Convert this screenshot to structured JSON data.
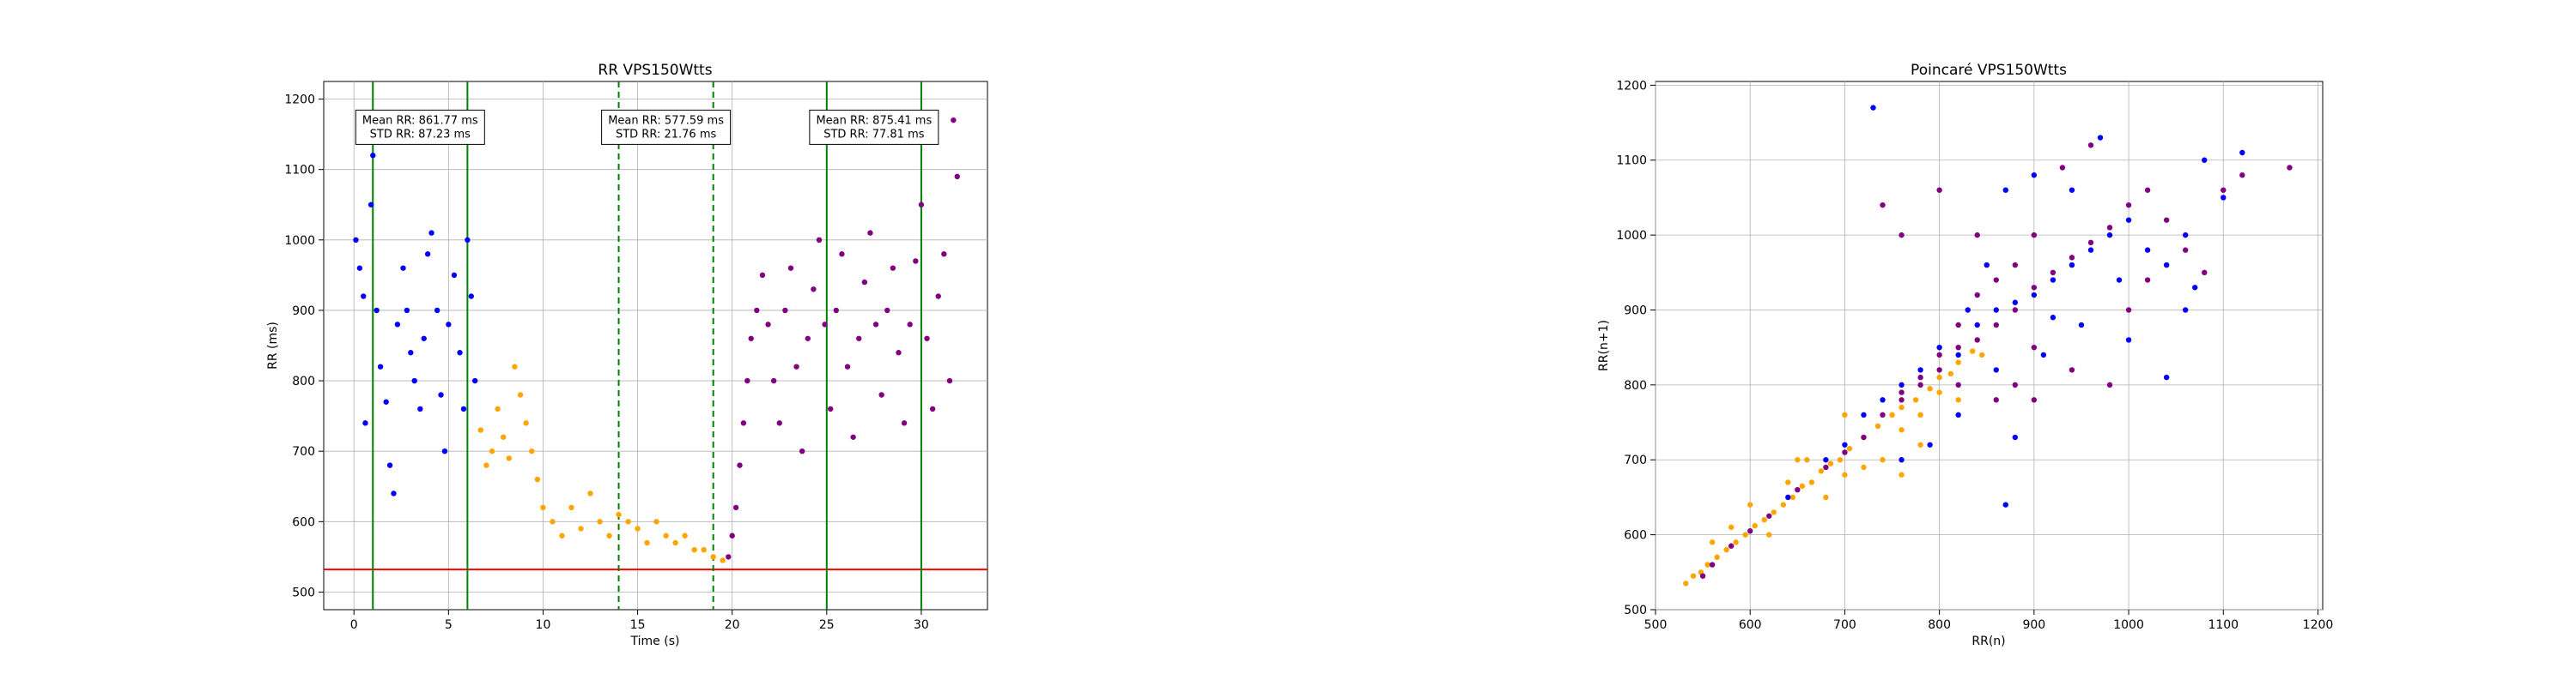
{
  "chart_data": [
    {
      "type": "scatter",
      "title": "RR VPS150Wtts",
      "xlabel": "Time (s)",
      "ylabel": "RR (ms)",
      "xlim": [
        -1.6,
        33.5
      ],
      "ylim": [
        475,
        1225
      ],
      "xticks": [
        0,
        5,
        10,
        15,
        20,
        25,
        30
      ],
      "yticks": [
        500,
        600,
        700,
        800,
        900,
        1000,
        1100,
        1200
      ],
      "grid": true,
      "series": [
        {
          "color": "#0000ff",
          "segment": [
            0,
            6.5
          ],
          "points": [
            [
              0.1,
              1000
            ],
            [
              0.3,
              960
            ],
            [
              0.5,
              920
            ],
            [
              0.6,
              740
            ],
            [
              0.9,
              1050
            ],
            [
              1.0,
              1120
            ],
            [
              1.2,
              900
            ],
            [
              1.4,
              820
            ],
            [
              1.7,
              770
            ],
            [
              1.9,
              680
            ],
            [
              2.1,
              640
            ],
            [
              2.3,
              880
            ],
            [
              2.6,
              960
            ],
            [
              2.8,
              900
            ],
            [
              3.0,
              840
            ],
            [
              3.2,
              800
            ],
            [
              3.5,
              760
            ],
            [
              3.7,
              860
            ],
            [
              3.9,
              980
            ],
            [
              4.1,
              1010
            ],
            [
              4.4,
              900
            ],
            [
              4.6,
              780
            ],
            [
              4.8,
              700
            ],
            [
              5.0,
              880
            ],
            [
              5.3,
              950
            ],
            [
              5.6,
              840
            ],
            [
              5.8,
              760
            ],
            [
              6.0,
              1000
            ],
            [
              6.2,
              920
            ],
            [
              6.4,
              800
            ]
          ]
        },
        {
          "color": "#ffa500",
          "segment": [
            6.5,
            19.8
          ],
          "points": [
            [
              6.7,
              730
            ],
            [
              7.0,
              680
            ],
            [
              7.3,
              700
            ],
            [
              7.6,
              760
            ],
            [
              7.9,
              720
            ],
            [
              8.2,
              690
            ],
            [
              8.5,
              820
            ],
            [
              8.8,
              780
            ],
            [
              9.1,
              740
            ],
            [
              9.4,
              700
            ],
            [
              9.7,
              660
            ],
            [
              10.0,
              620
            ],
            [
              10.5,
              600
            ],
            [
              11.0,
              580
            ],
            [
              11.5,
              620
            ],
            [
              12.0,
              590
            ],
            [
              12.5,
              640
            ],
            [
              13.0,
              600
            ],
            [
              13.5,
              580
            ],
            [
              14.0,
              610
            ],
            [
              14.5,
              600
            ],
            [
              15.0,
              590
            ],
            [
              15.5,
              570
            ],
            [
              16.0,
              600
            ],
            [
              16.5,
              580
            ],
            [
              17.0,
              570
            ],
            [
              17.5,
              580
            ],
            [
              18.0,
              560
            ],
            [
              18.5,
              560
            ],
            [
              19.0,
              550
            ],
            [
              19.5,
              545
            ]
          ]
        },
        {
          "color": "#800080",
          "segment": [
            19.8,
            32.0
          ],
          "points": [
            [
              19.8,
              550
            ],
            [
              20.0,
              580
            ],
            [
              20.2,
              620
            ],
            [
              20.4,
              680
            ],
            [
              20.6,
              740
            ],
            [
              20.8,
              800
            ],
            [
              21.0,
              860
            ],
            [
              21.3,
              900
            ],
            [
              21.6,
              950
            ],
            [
              21.9,
              880
            ],
            [
              22.2,
              800
            ],
            [
              22.5,
              740
            ],
            [
              22.8,
              900
            ],
            [
              23.1,
              960
            ],
            [
              23.4,
              820
            ],
            [
              23.7,
              700
            ],
            [
              24.0,
              860
            ],
            [
              24.3,
              930
            ],
            [
              24.6,
              1000
            ],
            [
              24.9,
              880
            ],
            [
              25.2,
              760
            ],
            [
              25.5,
              900
            ],
            [
              25.8,
              980
            ],
            [
              26.1,
              820
            ],
            [
              26.4,
              720
            ],
            [
              26.7,
              860
            ],
            [
              27.0,
              940
            ],
            [
              27.3,
              1010
            ],
            [
              27.6,
              880
            ],
            [
              27.9,
              780
            ],
            [
              28.2,
              900
            ],
            [
              28.5,
              960
            ],
            [
              28.8,
              840
            ],
            [
              29.1,
              740
            ],
            [
              29.4,
              880
            ],
            [
              29.7,
              970
            ],
            [
              30.0,
              1050
            ],
            [
              30.3,
              860
            ],
            [
              30.6,
              760
            ],
            [
              30.9,
              920
            ],
            [
              31.2,
              980
            ],
            [
              31.5,
              800
            ],
            [
              31.7,
              1170
            ],
            [
              31.9,
              1090
            ]
          ]
        }
      ],
      "hline": {
        "y": 532,
        "color": "#ff0000"
      },
      "vlines": [
        {
          "x": 1.0,
          "style": "solid",
          "color": "#008000"
        },
        {
          "x": 6.0,
          "style": "solid",
          "color": "#008000"
        },
        {
          "x": 14.0,
          "style": "dashed",
          "color": "#008000"
        },
        {
          "x": 19.0,
          "style": "dashed",
          "color": "#008000"
        },
        {
          "x": 25.0,
          "style": "solid",
          "color": "#008000"
        },
        {
          "x": 30.0,
          "style": "solid",
          "color": "#008000"
        }
      ],
      "annotations": [
        {
          "cx": 3.5,
          "cy": 1160,
          "lines": [
            "Mean RR: 861.77 ms",
            "STD RR: 87.23 ms"
          ]
        },
        {
          "cx": 16.5,
          "cy": 1160,
          "lines": [
            "Mean RR: 577.59 ms",
            "STD RR: 21.76 ms"
          ]
        },
        {
          "cx": 27.5,
          "cy": 1160,
          "lines": [
            "Mean RR: 875.41 ms",
            "STD RR: 77.81 ms"
          ]
        }
      ]
    },
    {
      "type": "scatter",
      "title": "Poincaré VPS150Wtts",
      "xlabel": "RR(n)",
      "ylabel": "RR(n+1)",
      "xlim": [
        500,
        1205
      ],
      "ylim": [
        500,
        1205
      ],
      "xticks": [
        500,
        600,
        700,
        800,
        900,
        1000,
        1100,
        1200
      ],
      "yticks": [
        500,
        600,
        700,
        800,
        900,
        1000,
        1100,
        1200
      ],
      "grid": true,
      "series": [
        {
          "color": "#ffa500",
          "points": [
            [
              532,
              535
            ],
            [
              540,
              545
            ],
            [
              548,
              550
            ],
            [
              555,
              560
            ],
            [
              565,
              570
            ],
            [
              575,
              580
            ],
            [
              585,
              590
            ],
            [
              595,
              600
            ],
            [
              605,
              612
            ],
            [
              615,
              620
            ],
            [
              625,
              630
            ],
            [
              635,
              640
            ],
            [
              645,
              650
            ],
            [
              655,
              665
            ],
            [
              665,
              670
            ],
            [
              675,
              685
            ],
            [
              685,
              695
            ],
            [
              695,
              700
            ],
            [
              705,
              715
            ],
            [
              720,
              730
            ],
            [
              735,
              745
            ],
            [
              750,
              760
            ],
            [
              760,
              770
            ],
            [
              775,
              780
            ],
            [
              790,
              795
            ],
            [
              800,
              810
            ],
            [
              812,
              815
            ],
            [
              820,
              830
            ],
            [
              835,
              845
            ],
            [
              845,
              840
            ],
            [
              660,
              700
            ],
            [
              680,
              650
            ],
            [
              700,
              680
            ],
            [
              720,
              690
            ],
            [
              740,
              700
            ],
            [
              760,
              740
            ],
            [
              780,
              760
            ],
            [
              800,
              790
            ],
            [
              600,
              640
            ],
            [
              620,
              600
            ],
            [
              640,
              670
            ],
            [
              580,
              610
            ],
            [
              560,
              590
            ],
            [
              700,
              760
            ],
            [
              650,
              700
            ],
            [
              760,
              680
            ],
            [
              780,
              720
            ],
            [
              820,
              780
            ]
          ]
        },
        {
          "color": "#0000ff",
          "points": [
            [
              640,
              650
            ],
            [
              680,
              700
            ],
            [
              700,
              720
            ],
            [
              720,
              760
            ],
            [
              740,
              780
            ],
            [
              760,
              800
            ],
            [
              780,
              820
            ],
            [
              800,
              850
            ],
            [
              820,
              840
            ],
            [
              840,
              880
            ],
            [
              860,
              900
            ],
            [
              880,
              910
            ],
            [
              900,
              920
            ],
            [
              920,
              940
            ],
            [
              940,
              960
            ],
            [
              960,
              980
            ],
            [
              980,
              1000
            ],
            [
              1000,
              1020
            ],
            [
              1020,
              980
            ],
            [
              1040,
              960
            ],
            [
              1060,
              1000
            ],
            [
              1080,
              1100
            ],
            [
              1100,
              1050
            ],
            [
              1120,
              1110
            ],
            [
              900,
              1080
            ],
            [
              870,
              1060
            ],
            [
              850,
              960
            ],
            [
              830,
              900
            ],
            [
              870,
              640
            ],
            [
              880,
              730
            ],
            [
              1040,
              810
            ],
            [
              1000,
              860
            ],
            [
              950,
              880
            ],
            [
              910,
              840
            ],
            [
              860,
              820
            ],
            [
              820,
              760
            ],
            [
              790,
              720
            ],
            [
              760,
              700
            ],
            [
              730,
              1170
            ],
            [
              1070,
              930
            ],
            [
              1060,
              900
            ],
            [
              990,
              940
            ],
            [
              970,
              1130
            ],
            [
              940,
              1060
            ],
            [
              920,
              890
            ]
          ]
        },
        {
          "color": "#800080",
          "points": [
            [
              550,
              545
            ],
            [
              560,
              560
            ],
            [
              580,
              585
            ],
            [
              600,
              605
            ],
            [
              620,
              625
            ],
            [
              650,
              660
            ],
            [
              680,
              690
            ],
            [
              700,
              710
            ],
            [
              720,
              730
            ],
            [
              740,
              760
            ],
            [
              760,
              780
            ],
            [
              780,
              800
            ],
            [
              800,
              820
            ],
            [
              820,
              850
            ],
            [
              840,
              860
            ],
            [
              860,
              880
            ],
            [
              880,
              900
            ],
            [
              900,
              930
            ],
            [
              920,
              950
            ],
            [
              940,
              970
            ],
            [
              960,
              990
            ],
            [
              980,
              1010
            ],
            [
              1000,
              1040
            ],
            [
              1020,
              1060
            ],
            [
              1040,
              1020
            ],
            [
              1060,
              980
            ],
            [
              1080,
              950
            ],
            [
              1100,
              1060
            ],
            [
              1120,
              1080
            ],
            [
              1170,
              1090
            ],
            [
              960,
              1120
            ],
            [
              930,
              1090
            ],
            [
              900,
              1000
            ],
            [
              880,
              960
            ],
            [
              860,
              940
            ],
            [
              840,
              920
            ],
            [
              820,
              880
            ],
            [
              800,
              840
            ],
            [
              780,
              810
            ],
            [
              760,
              790
            ],
            [
              740,
              1040
            ],
            [
              760,
              1000
            ],
            [
              800,
              1060
            ],
            [
              840,
              1000
            ],
            [
              900,
              850
            ],
            [
              940,
              820
            ],
            [
              980,
              800
            ],
            [
              1000,
              900
            ],
            [
              1020,
              940
            ],
            [
              900,
              780
            ],
            [
              880,
              800
            ],
            [
              860,
              780
            ],
            [
              820,
              800
            ]
          ]
        }
      ]
    }
  ]
}
